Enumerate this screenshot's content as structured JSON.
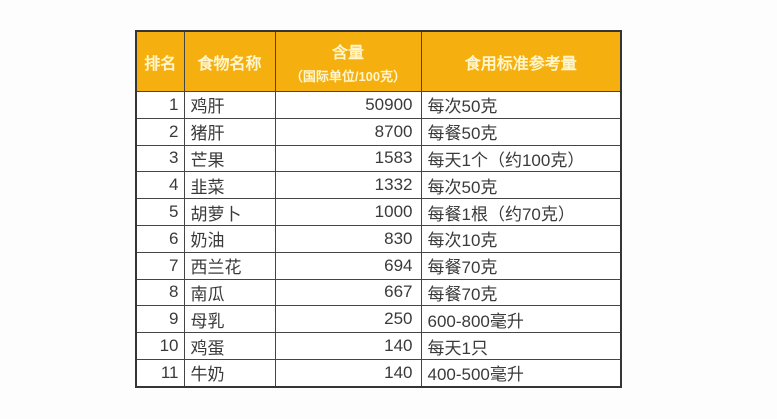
{
  "table": {
    "name": "food-vitamin-content-table",
    "columns": [
      {
        "key": "rank",
        "label": "排名"
      },
      {
        "key": "food",
        "label": "食物名称"
      },
      {
        "key": "amount",
        "label": "含量",
        "sublabel": "（国际单位/100克）"
      },
      {
        "key": "reference",
        "label": "食用标准参考量"
      }
    ],
    "rows": [
      {
        "rank": "1",
        "food": "鸡肝",
        "amount": "50900",
        "reference": "每次50克"
      },
      {
        "rank": "2",
        "food": "猪肝",
        "amount": "8700",
        "reference": "每餐50克"
      },
      {
        "rank": "3",
        "food": "芒果",
        "amount": "1583",
        "reference": "每天1个（约100克）"
      },
      {
        "rank": "4",
        "food": "韭菜",
        "amount": "1332",
        "reference": "每次50克"
      },
      {
        "rank": "5",
        "food": "胡萝卜",
        "amount": "1000",
        "reference": "每餐1根（约70克）"
      },
      {
        "rank": "6",
        "food": "奶油",
        "amount": "830",
        "reference": "每次10克"
      },
      {
        "rank": "7",
        "food": "西兰花",
        "amount": "694",
        "reference": "每餐70克"
      },
      {
        "rank": "8",
        "food": "南瓜",
        "amount": "667",
        "reference": "每餐70克"
      },
      {
        "rank": "9",
        "food": "母乳",
        "amount": "250",
        "reference": "600-800毫升"
      },
      {
        "rank": "10",
        "food": "鸡蛋",
        "amount": "140",
        "reference": "每天1只"
      },
      {
        "rank": "11",
        "food": "牛奶",
        "amount": "140",
        "reference": "400-500毫升"
      }
    ]
  },
  "colors": {
    "header_bg": "#F5AF0F",
    "header_text": "#FFF6CE",
    "border": "#454545",
    "body_text": "#3A3A3A",
    "page_bg": "#FDFDFD"
  }
}
